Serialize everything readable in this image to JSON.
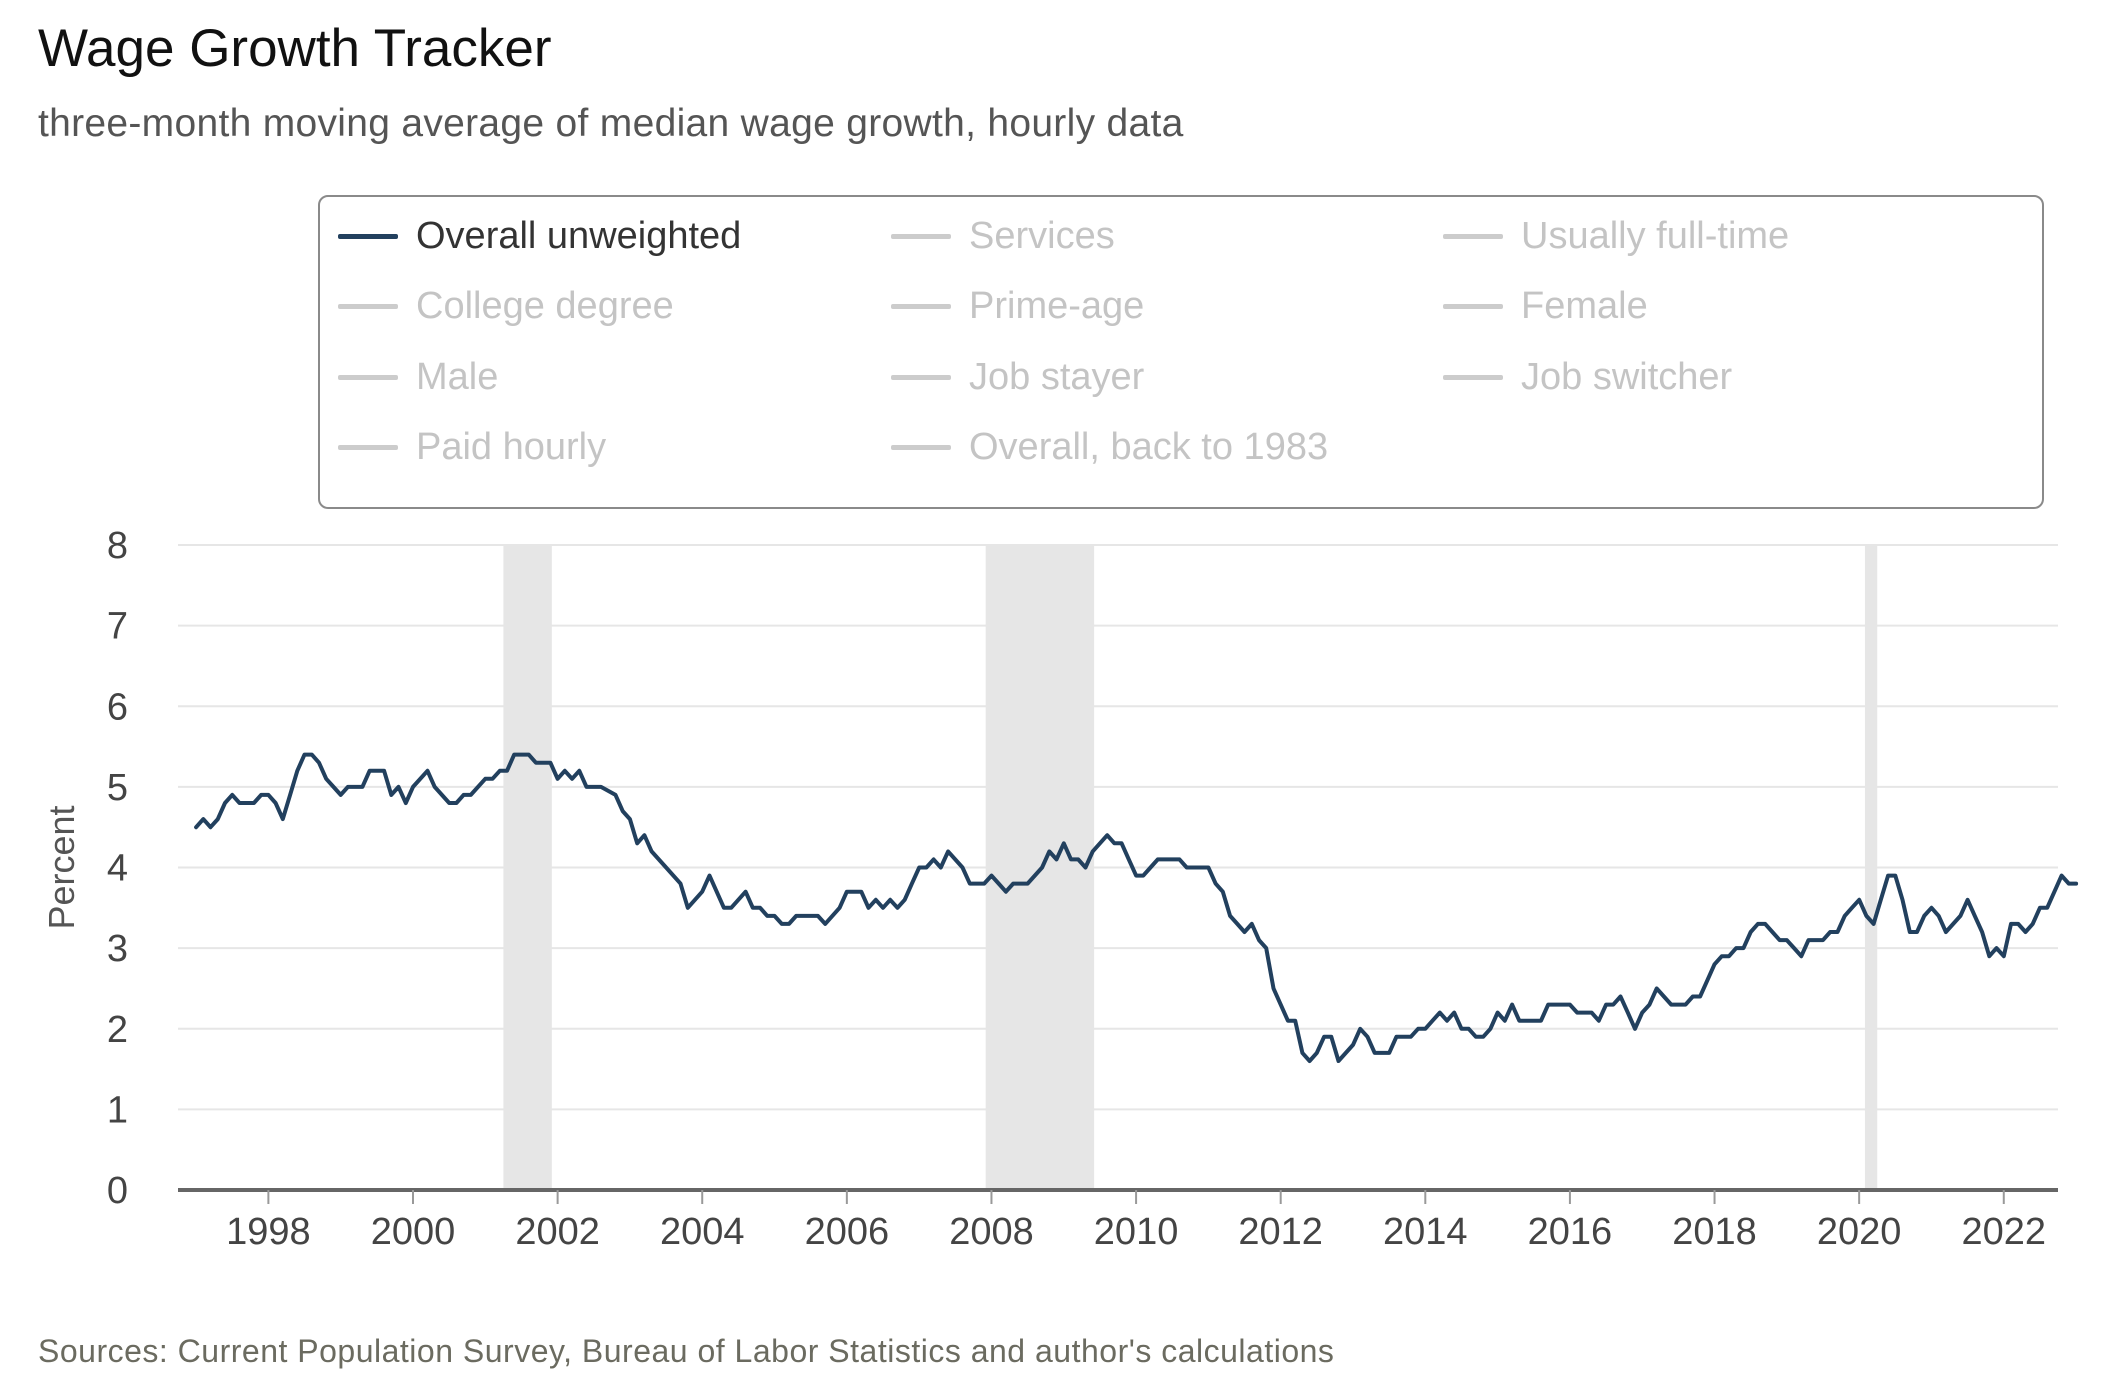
{
  "header": {
    "title": "Wage Growth Tracker",
    "subtitle": "three-month moving average of median wage growth, hourly data"
  },
  "legend": {
    "items": [
      {
        "label": "Overall unweighted",
        "active": true
      },
      {
        "label": "Services",
        "active": false
      },
      {
        "label": "Usually full-time",
        "active": false
      },
      {
        "label": "College degree",
        "active": false
      },
      {
        "label": "Prime-age",
        "active": false
      },
      {
        "label": "Female",
        "active": false
      },
      {
        "label": "Male",
        "active": false
      },
      {
        "label": "Job stayer",
        "active": false
      },
      {
        "label": "Job switcher",
        "active": false
      },
      {
        "label": "Paid hourly",
        "active": false
      },
      {
        "label": "Overall, back to 1983",
        "active": false
      }
    ]
  },
  "footer": {
    "source": "Sources: Current Population Survey, Bureau of Labor Statistics and author's calculations"
  },
  "colors": {
    "series": "#22405e",
    "legend_inactive": "#cccccc",
    "recession_band": "#e6e6e6",
    "grid": "#e6e6e6",
    "axis": "#666666"
  },
  "chart_data": {
    "type": "line",
    "title": "Wage Growth Tracker",
    "subtitle": "three-month moving average of median wage growth, hourly data",
    "xlabel": "",
    "ylabel": "Percent",
    "xlim": [
      1996.75,
      2022.75
    ],
    "ylim": [
      0,
      8
    ],
    "x_ticks": [
      1998,
      2000,
      2002,
      2004,
      2006,
      2008,
      2010,
      2012,
      2014,
      2016,
      2018,
      2020,
      2022
    ],
    "y_ticks": [
      0,
      1,
      2,
      3,
      4,
      5,
      6,
      7,
      8
    ],
    "grid": "horizontal",
    "recessions": [
      [
        2001.25,
        2001.92
      ],
      [
        2007.92,
        2009.42
      ],
      [
        2020.08,
        2020.25
      ]
    ],
    "series": [
      {
        "name": "Overall unweighted",
        "points": [
          [
            1997.0,
            4.5
          ],
          [
            1997.1,
            4.6
          ],
          [
            1997.2,
            4.5
          ],
          [
            1997.3,
            4.6
          ],
          [
            1997.4,
            4.8
          ],
          [
            1997.5,
            4.9
          ],
          [
            1997.6,
            4.8
          ],
          [
            1997.8,
            4.8
          ],
          [
            1997.9,
            4.9
          ],
          [
            1998.0,
            4.9
          ],
          [
            1998.1,
            4.8
          ],
          [
            1998.2,
            4.6
          ],
          [
            1998.3,
            4.9
          ],
          [
            1998.4,
            5.2
          ],
          [
            1998.5,
            5.4
          ],
          [
            1998.6,
            5.4
          ],
          [
            1998.7,
            5.3
          ],
          [
            1998.8,
            5.1
          ],
          [
            1998.9,
            5.0
          ],
          [
            1999.0,
            4.9
          ],
          [
            1999.1,
            5.0
          ],
          [
            1999.3,
            5.0
          ],
          [
            1999.4,
            5.2
          ],
          [
            1999.6,
            5.2
          ],
          [
            1999.7,
            4.9
          ],
          [
            1999.8,
            5.0
          ],
          [
            1999.9,
            4.8
          ],
          [
            2000.0,
            5.0
          ],
          [
            2000.2,
            5.2
          ],
          [
            2000.3,
            5.0
          ],
          [
            2000.5,
            4.8
          ],
          [
            2000.6,
            4.8
          ],
          [
            2000.7,
            4.9
          ],
          [
            2000.8,
            4.9
          ],
          [
            2001.0,
            5.1
          ],
          [
            2001.1,
            5.1
          ],
          [
            2001.2,
            5.2
          ],
          [
            2001.3,
            5.2
          ],
          [
            2001.4,
            5.4
          ],
          [
            2001.6,
            5.4
          ],
          [
            2001.7,
            5.3
          ],
          [
            2001.9,
            5.3
          ],
          [
            2002.0,
            5.1
          ],
          [
            2002.1,
            5.2
          ],
          [
            2002.2,
            5.1
          ],
          [
            2002.3,
            5.2
          ],
          [
            2002.4,
            5.0
          ],
          [
            2002.6,
            5.0
          ],
          [
            2002.8,
            4.9
          ],
          [
            2002.9,
            4.7
          ],
          [
            2003.0,
            4.6
          ],
          [
            2003.1,
            4.3
          ],
          [
            2003.2,
            4.4
          ],
          [
            2003.3,
            4.2
          ],
          [
            2003.5,
            4.0
          ],
          [
            2003.7,
            3.8
          ],
          [
            2003.8,
            3.5
          ],
          [
            2004.0,
            3.7
          ],
          [
            2004.1,
            3.9
          ],
          [
            2004.3,
            3.5
          ],
          [
            2004.4,
            3.5
          ],
          [
            2004.6,
            3.7
          ],
          [
            2004.7,
            3.5
          ],
          [
            2004.8,
            3.5
          ],
          [
            2004.9,
            3.4
          ],
          [
            2005.0,
            3.4
          ],
          [
            2005.1,
            3.3
          ],
          [
            2005.2,
            3.3
          ],
          [
            2005.3,
            3.4
          ],
          [
            2005.6,
            3.4
          ],
          [
            2005.7,
            3.3
          ],
          [
            2005.9,
            3.5
          ],
          [
            2006.0,
            3.7
          ],
          [
            2006.2,
            3.7
          ],
          [
            2006.3,
            3.5
          ],
          [
            2006.4,
            3.6
          ],
          [
            2006.5,
            3.5
          ],
          [
            2006.6,
            3.6
          ],
          [
            2006.7,
            3.5
          ],
          [
            2006.8,
            3.6
          ],
          [
            2006.9,
            3.8
          ],
          [
            2007.0,
            4.0
          ],
          [
            2007.1,
            4.0
          ],
          [
            2007.2,
            4.1
          ],
          [
            2007.3,
            4.0
          ],
          [
            2007.4,
            4.2
          ],
          [
            2007.6,
            4.0
          ],
          [
            2007.7,
            3.8
          ],
          [
            2007.9,
            3.8
          ],
          [
            2008.0,
            3.9
          ],
          [
            2008.1,
            3.8
          ],
          [
            2008.2,
            3.7
          ],
          [
            2008.3,
            3.8
          ],
          [
            2008.5,
            3.8
          ],
          [
            2008.6,
            3.9
          ],
          [
            2008.7,
            4.0
          ],
          [
            2008.8,
            4.2
          ],
          [
            2008.9,
            4.1
          ],
          [
            2009.0,
            4.3
          ],
          [
            2009.1,
            4.1
          ],
          [
            2009.2,
            4.1
          ],
          [
            2009.3,
            4.0
          ],
          [
            2009.4,
            4.2
          ],
          [
            2009.6,
            4.4
          ],
          [
            2009.7,
            4.3
          ],
          [
            2009.8,
            4.3
          ],
          [
            2009.9,
            4.1
          ],
          [
            2010.0,
            3.9
          ],
          [
            2010.1,
            3.9
          ],
          [
            2010.2,
            4.0
          ],
          [
            2010.3,
            4.1
          ],
          [
            2010.6,
            4.1
          ],
          [
            2010.7,
            4.0
          ],
          [
            2011.0,
            4.0
          ],
          [
            2011.1,
            3.8
          ],
          [
            2011.2,
            3.7
          ],
          [
            2011.3,
            3.4
          ],
          [
            2011.4,
            3.3
          ],
          [
            2011.5,
            3.2
          ],
          [
            2011.6,
            3.3
          ],
          [
            2011.7,
            3.1
          ],
          [
            2011.8,
            3.0
          ],
          [
            2011.9,
            2.5
          ],
          [
            2012.0,
            2.3
          ],
          [
            2012.1,
            2.1
          ],
          [
            2012.2,
            2.1
          ],
          [
            2012.3,
            1.7
          ],
          [
            2012.4,
            1.6
          ],
          [
            2012.5,
            1.7
          ],
          [
            2012.6,
            1.9
          ],
          [
            2012.7,
            1.9
          ],
          [
            2012.8,
            1.6
          ],
          [
            2012.9,
            1.7
          ],
          [
            2013.0,
            1.8
          ],
          [
            2013.1,
            2.0
          ],
          [
            2013.2,
            1.9
          ],
          [
            2013.3,
            1.7
          ],
          [
            2013.5,
            1.7
          ],
          [
            2013.6,
            1.9
          ],
          [
            2013.8,
            1.9
          ],
          [
            2013.9,
            2.0
          ],
          [
            2014.0,
            2.0
          ],
          [
            2014.1,
            2.1
          ],
          [
            2014.2,
            2.2
          ],
          [
            2014.3,
            2.1
          ],
          [
            2014.4,
            2.2
          ],
          [
            2014.5,
            2.0
          ],
          [
            2014.6,
            2.0
          ],
          [
            2014.7,
            1.9
          ],
          [
            2014.8,
            1.9
          ],
          [
            2014.9,
            2.0
          ],
          [
            2015.0,
            2.2
          ],
          [
            2015.1,
            2.1
          ],
          [
            2015.2,
            2.3
          ],
          [
            2015.3,
            2.1
          ],
          [
            2015.6,
            2.1
          ],
          [
            2015.7,
            2.3
          ],
          [
            2015.9,
            2.3
          ],
          [
            2016.0,
            2.3
          ],
          [
            2016.1,
            2.2
          ],
          [
            2016.3,
            2.2
          ],
          [
            2016.4,
            2.1
          ],
          [
            2016.5,
            2.3
          ],
          [
            2016.6,
            2.3
          ],
          [
            2016.7,
            2.4
          ],
          [
            2016.8,
            2.2
          ],
          [
            2016.9,
            2.0
          ],
          [
            2017.0,
            2.2
          ],
          [
            2017.1,
            2.3
          ],
          [
            2017.2,
            2.5
          ],
          [
            2017.3,
            2.4
          ],
          [
            2017.4,
            2.3
          ],
          [
            2017.6,
            2.3
          ],
          [
            2017.7,
            2.4
          ],
          [
            2017.8,
            2.4
          ],
          [
            2017.9,
            2.6
          ],
          [
            2018.0,
            2.8
          ],
          [
            2018.1,
            2.9
          ],
          [
            2018.2,
            2.9
          ],
          [
            2018.3,
            3.0
          ],
          [
            2018.4,
            3.0
          ],
          [
            2018.5,
            3.2
          ],
          [
            2018.6,
            3.3
          ],
          [
            2018.7,
            3.3
          ],
          [
            2018.8,
            3.2
          ],
          [
            2018.9,
            3.1
          ],
          [
            2019.0,
            3.1
          ],
          [
            2019.1,
            3.0
          ],
          [
            2019.2,
            2.9
          ],
          [
            2019.3,
            3.1
          ],
          [
            2019.5,
            3.1
          ],
          [
            2019.6,
            3.2
          ],
          [
            2019.7,
            3.2
          ],
          [
            2019.8,
            3.4
          ],
          [
            2019.9,
            3.5
          ],
          [
            2020.0,
            3.6
          ],
          [
            2020.1,
            3.4
          ],
          [
            2020.2,
            3.3
          ],
          [
            2020.3,
            3.6
          ],
          [
            2020.4,
            3.9
          ],
          [
            2020.5,
            3.9
          ],
          [
            2020.6,
            3.6
          ],
          [
            2020.7,
            3.2
          ],
          [
            2020.8,
            3.2
          ],
          [
            2020.9,
            3.4
          ],
          [
            2021.0,
            3.5
          ],
          [
            2021.1,
            3.4
          ],
          [
            2021.2,
            3.2
          ],
          [
            2021.3,
            3.3
          ],
          [
            2021.4,
            3.4
          ],
          [
            2021.5,
            3.6
          ],
          [
            2021.6,
            3.4
          ],
          [
            2021.7,
            3.2
          ],
          [
            2021.8,
            2.9
          ],
          [
            2021.9,
            3.0
          ],
          [
            2022.0,
            2.9
          ],
          [
            2022.1,
            3.3
          ],
          [
            2022.2,
            3.3
          ],
          [
            2022.3,
            3.2
          ],
          [
            2022.4,
            3.3
          ],
          [
            2022.5,
            3.5
          ],
          [
            2022.6,
            3.5
          ],
          [
            2022.7,
            3.7
          ],
          [
            2022.8,
            3.9
          ],
          [
            2022.9,
            3.8
          ],
          [
            2023.0,
            3.8
          ]
        ]
      }
    ]
  }
}
